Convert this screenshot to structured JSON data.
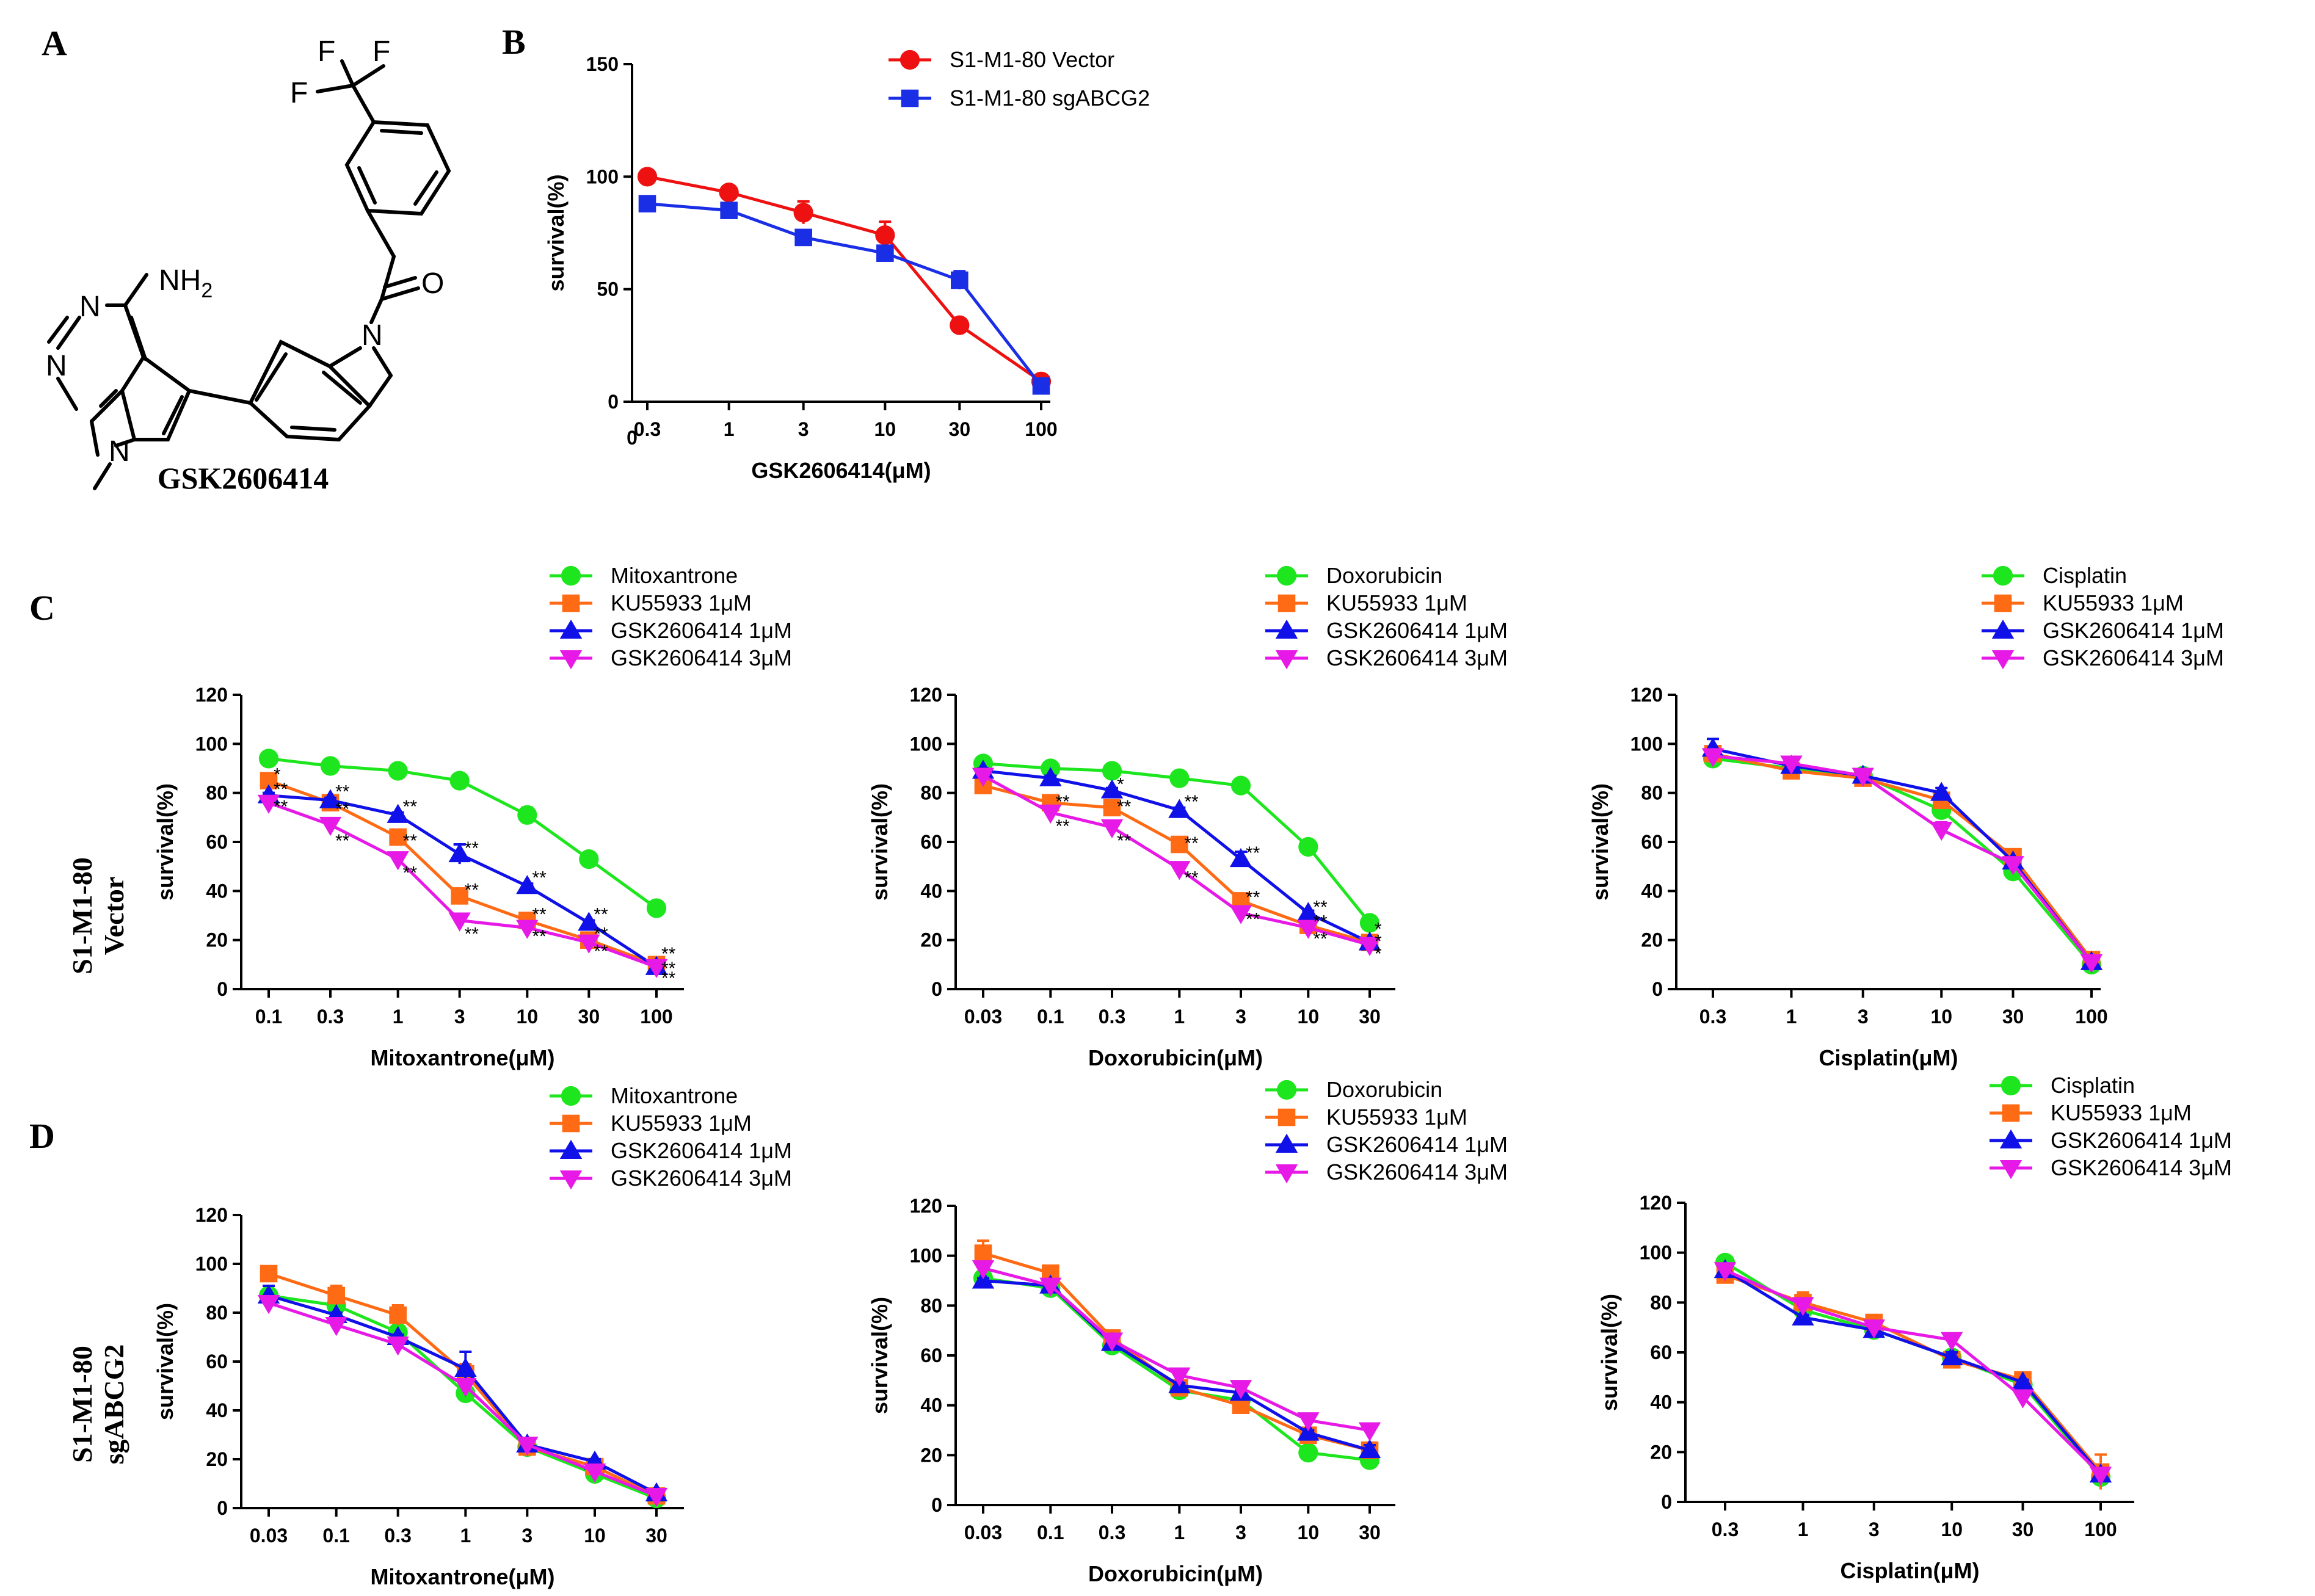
{
  "panels": {
    "A": "A",
    "B": "B",
    "C": "C",
    "D": "D"
  },
  "compound": {
    "name": "GSK2606414",
    "labels": {
      "f1": "F",
      "f2": "F",
      "f3": "F",
      "nh2": "NH",
      "nh2_sub": "2",
      "o": "O",
      "n_amide": "N",
      "n_pyr1": "N",
      "n_pyr2": "N",
      "n_pyrrole": "N"
    }
  },
  "row_labels": {
    "C": {
      "line1": "S1-M1-80",
      "line2": "Vector"
    },
    "D": {
      "line1": "S1-M1-80",
      "line2": "sgABCG2"
    }
  },
  "colors": {
    "green": "#1ee61e",
    "orange": "#ff6a14",
    "blue": "#1010e8",
    "magenta": "#e619e6",
    "red": "#ee1111",
    "blue_b": "#1a2ee6"
  },
  "chart_data": [
    {
      "id": "B",
      "type": "line",
      "x_scale": "log",
      "categories": [
        "0.3",
        "1",
        "3",
        "10",
        "30",
        "100"
      ],
      "x": [
        0.3,
        1,
        3,
        10,
        30,
        100
      ],
      "extra_x_tick": "0",
      "xlabel": "GSK2606414(μM)",
      "ylabel": "survival(%)",
      "ylim": [
        0,
        150
      ],
      "yticks": [
        "0",
        "50",
        "100",
        "150"
      ],
      "legend": "top-right",
      "series": [
        {
          "name": "S1-M1-80 Vector",
          "color": "#ee1111",
          "marker": "circle",
          "values": [
            100,
            93,
            84,
            74,
            34,
            9
          ],
          "err": [
            3,
            1,
            5,
            6,
            1,
            1
          ]
        },
        {
          "name": "S1-M1-80 sgABCG2",
          "color": "#1a2ee6",
          "marker": "square",
          "values": [
            88,
            85,
            73,
            66,
            54,
            7
          ],
          "err": [
            1,
            1,
            2,
            2,
            4,
            1
          ]
        }
      ]
    },
    {
      "id": "C1",
      "type": "line",
      "x_scale": "log",
      "categories": [
        "0.1",
        "0.3",
        "1",
        "3",
        "10",
        "30",
        "100"
      ],
      "x": [
        0.1,
        0.3,
        1,
        3,
        10,
        30,
        100
      ],
      "xlabel": "Mitoxantrone(μM)",
      "ylabel": "survival(%)",
      "ylim": [
        0,
        120
      ],
      "yticks": [
        "0",
        "20",
        "40",
        "60",
        "80",
        "100",
        "120"
      ],
      "legend": "top-right",
      "series": [
        {
          "name": "Mitoxantrone",
          "color": "#1ee61e",
          "marker": "circle",
          "values": [
            94,
            91,
            89,
            85,
            71,
            53,
            33
          ],
          "err": [
            1,
            2,
            1,
            2,
            3,
            1,
            1
          ]
        },
        {
          "name": "KU55933 1μM",
          "color": "#ff6a14",
          "marker": "square",
          "values": [
            85,
            76,
            62,
            38,
            28,
            20,
            10
          ],
          "err": [
            3,
            2,
            2,
            2,
            1,
            1,
            1
          ]
        },
        {
          "name": "GSK2606414 1μM",
          "color": "#1010e8",
          "marker": "triangle-up",
          "values": [
            79,
            77,
            71,
            55,
            42,
            27,
            9
          ],
          "err": [
            1,
            1,
            1,
            4,
            1,
            1,
            1
          ]
        },
        {
          "name": "GSK2606414 3μM",
          "color": "#e619e6",
          "marker": "triangle-down",
          "values": [
            76,
            67,
            53,
            28,
            25,
            19,
            9
          ],
          "err": [
            1,
            1,
            2,
            1,
            1,
            1,
            1
          ]
        }
      ],
      "annotations": [
        {
          "x": 0.1,
          "y": 85,
          "text": "*"
        },
        {
          "x": 0.1,
          "y": 79,
          "text": "**"
        },
        {
          "x": 0.1,
          "y": 72,
          "text": "**"
        },
        {
          "x": 0.3,
          "y": 78,
          "text": "**"
        },
        {
          "x": 0.3,
          "y": 71,
          "text": "**"
        },
        {
          "x": 0.3,
          "y": 58,
          "text": "**"
        },
        {
          "x": 1,
          "y": 72,
          "text": "**"
        },
        {
          "x": 1,
          "y": 58,
          "text": "**"
        },
        {
          "x": 1,
          "y": 45,
          "text": "**"
        },
        {
          "x": 3,
          "y": 55,
          "text": "**"
        },
        {
          "x": 3,
          "y": 38,
          "text": "**"
        },
        {
          "x": 3,
          "y": 20,
          "text": "**"
        },
        {
          "x": 10,
          "y": 43,
          "text": "**"
        },
        {
          "x": 10,
          "y": 28,
          "text": "**"
        },
        {
          "x": 10,
          "y": 19,
          "text": "**"
        },
        {
          "x": 30,
          "y": 28,
          "text": "**"
        },
        {
          "x": 30,
          "y": 20,
          "text": "**"
        },
        {
          "x": 30,
          "y": 13,
          "text": "**"
        },
        {
          "x": 100,
          "y": 12,
          "text": "**"
        },
        {
          "x": 100,
          "y": 6,
          "text": "**"
        },
        {
          "x": 100,
          "y": 2,
          "text": "**"
        }
      ]
    },
    {
      "id": "C2",
      "type": "line",
      "x_scale": "log",
      "categories": [
        "0.03",
        "0.1",
        "0.3",
        "1",
        "3",
        "10",
        "30"
      ],
      "x": [
        0.03,
        0.1,
        0.3,
        1,
        3,
        10,
        30
      ],
      "xlabel": "Doxorubicin(μM)",
      "ylabel": "survival(%)",
      "ylim": [
        0,
        120
      ],
      "yticks": [
        "0",
        "20",
        "40",
        "60",
        "80",
        "100",
        "120"
      ],
      "legend": "top-right",
      "series": [
        {
          "name": "Doxorubicin",
          "color": "#1ee61e",
          "marker": "circle",
          "values": [
            92,
            90,
            89,
            86,
            83,
            58,
            27
          ],
          "err": [
            1,
            1,
            1,
            1,
            1,
            1,
            1
          ]
        },
        {
          "name": "KU55933 1μM",
          "color": "#ff6a14",
          "marker": "square",
          "values": [
            83,
            76,
            74,
            59,
            36,
            26,
            19
          ],
          "err": [
            1,
            1,
            1,
            1,
            1,
            1,
            1
          ]
        },
        {
          "name": "GSK2606414 1μM",
          "color": "#1010e8",
          "marker": "triangle-up",
          "values": [
            89,
            86,
            81,
            73,
            53,
            31,
            19
          ],
          "err": [
            1,
            1,
            1,
            1,
            3,
            1,
            1
          ]
        },
        {
          "name": "GSK2606414 3μM",
          "color": "#e619e6",
          "marker": "triangle-down",
          "values": [
            87,
            72,
            66,
            49,
            31,
            25,
            18
          ],
          "err": [
            1,
            1,
            1,
            1,
            1,
            1,
            1
          ]
        }
      ],
      "annotations": [
        {
          "x": 0.1,
          "y": 74,
          "text": "**"
        },
        {
          "x": 0.1,
          "y": 64,
          "text": "**"
        },
        {
          "x": 0.3,
          "y": 81,
          "text": "*"
        },
        {
          "x": 0.3,
          "y": 72,
          "text": "**"
        },
        {
          "x": 0.3,
          "y": 58,
          "text": "**"
        },
        {
          "x": 1,
          "y": 74,
          "text": "**"
        },
        {
          "x": 1,
          "y": 57,
          "text": "**"
        },
        {
          "x": 1,
          "y": 43,
          "text": "**"
        },
        {
          "x": 3,
          "y": 53,
          "text": "**"
        },
        {
          "x": 3,
          "y": 35,
          "text": "**"
        },
        {
          "x": 3,
          "y": 26,
          "text": "**"
        },
        {
          "x": 10,
          "y": 31,
          "text": "**"
        },
        {
          "x": 10,
          "y": 25,
          "text": "**"
        },
        {
          "x": 10,
          "y": 18,
          "text": "**"
        },
        {
          "x": 30,
          "y": 22,
          "text": "*"
        },
        {
          "x": 30,
          "y": 17,
          "text": "*"
        },
        {
          "x": 30,
          "y": 12,
          "text": "*"
        }
      ]
    },
    {
      "id": "C3",
      "type": "line",
      "x_scale": "log",
      "categories": [
        "0.3",
        "1",
        "3",
        "10",
        "30",
        "100"
      ],
      "x": [
        0.3,
        1,
        3,
        10,
        30,
        100
      ],
      "xlabel": "Cisplatin(μM)",
      "ylabel": "survival(%)",
      "ylim": [
        0,
        120
      ],
      "yticks": [
        "0",
        "20",
        "40",
        "60",
        "80",
        "100",
        "120"
      ],
      "legend": "top-right",
      "series": [
        {
          "name": "Cisplatin",
          "color": "#1ee61e",
          "marker": "circle",
          "values": [
            94,
            90,
            87,
            73,
            48,
            10
          ],
          "err": [
            1,
            1,
            1,
            1,
            1,
            1
          ]
        },
        {
          "name": "KU55933 1μM",
          "color": "#ff6a14",
          "marker": "square",
          "values": [
            96,
            89,
            86,
            77,
            54,
            12
          ],
          "err": [
            1,
            1,
            1,
            1,
            1,
            1
          ]
        },
        {
          "name": "GSK2606414 1μM",
          "color": "#1010e8",
          "marker": "triangle-up",
          "values": [
            98,
            91,
            87,
            80,
            52,
            11
          ],
          "err": [
            4,
            1,
            1,
            2,
            1,
            1
          ]
        },
        {
          "name": "GSK2606414 3μM",
          "color": "#e619e6",
          "marker": "triangle-down",
          "values": [
            95,
            92,
            87,
            65,
            51,
            11
          ],
          "err": [
            1,
            1,
            1,
            3,
            1,
            1
          ]
        }
      ]
    },
    {
      "id": "D1",
      "type": "line",
      "x_scale": "log",
      "categories": [
        "0.03",
        "0.1",
        "0.3",
        "1",
        "3",
        "10",
        "30"
      ],
      "x": [
        0.03,
        0.1,
        0.3,
        1,
        3,
        10,
        30
      ],
      "xlabel": "Mitoxantrone(μM)",
      "ylabel": "survival(%)",
      "ylim": [
        0,
        120
      ],
      "yticks": [
        "0",
        "20",
        "40",
        "60",
        "80",
        "100",
        "120"
      ],
      "legend": "top-right",
      "series": [
        {
          "name": "Mitoxantrone",
          "color": "#1ee61e",
          "marker": "circle",
          "values": [
            87,
            83,
            72,
            47,
            25,
            14,
            4
          ],
          "err": [
            1,
            2,
            2,
            2,
            1,
            1,
            1
          ]
        },
        {
          "name": "KU55933 1μM",
          "color": "#ff6a14",
          "marker": "square",
          "values": [
            96,
            87,
            79,
            55,
            25,
            17,
            5
          ],
          "err": [
            1,
            4,
            4,
            4,
            1,
            1,
            1
          ]
        },
        {
          "name": "GSK2606414 1μM",
          "color": "#1010e8",
          "marker": "triangle-up",
          "values": [
            87,
            79,
            70,
            57,
            26,
            19,
            6
          ],
          "err": [
            4,
            1,
            1,
            7,
            1,
            1,
            1
          ]
        },
        {
          "name": "GSK2606414 3μM",
          "color": "#e619e6",
          "marker": "triangle-down",
          "values": [
            84,
            75,
            67,
            50,
            26,
            15,
            5
          ],
          "err": [
            1,
            1,
            1,
            2,
            1,
            1,
            1
          ]
        }
      ]
    },
    {
      "id": "D2",
      "type": "line",
      "x_scale": "log",
      "categories": [
        "0.03",
        "0.1",
        "0.3",
        "1",
        "3",
        "10",
        "30"
      ],
      "x": [
        0.03,
        0.1,
        0.3,
        1,
        3,
        10,
        30
      ],
      "xlabel": "Doxorubicin(μM)",
      "ylabel": "survival(%)",
      "ylim": [
        0,
        120
      ],
      "yticks": [
        "0",
        "20",
        "40",
        "60",
        "80",
        "100",
        "120"
      ],
      "legend": "top-right",
      "series": [
        {
          "name": "Doxorubicin",
          "color": "#1ee61e",
          "marker": "circle",
          "values": [
            91,
            87,
            64,
            46,
            42,
            21,
            18
          ],
          "err": [
            1,
            1,
            1,
            1,
            1,
            1,
            1
          ]
        },
        {
          "name": "KU55933 1μM",
          "color": "#ff6a14",
          "marker": "square",
          "values": [
            101,
            93,
            67,
            47,
            40,
            28,
            22
          ],
          "err": [
            5,
            2,
            2,
            2,
            2,
            2,
            3
          ]
        },
        {
          "name": "GSK2606414 1μM",
          "color": "#1010e8",
          "marker": "triangle-up",
          "values": [
            90,
            88,
            65,
            48,
            45,
            29,
            22
          ],
          "err": [
            1,
            1,
            1,
            1,
            1,
            1,
            2
          ]
        },
        {
          "name": "GSK2606414 3μM",
          "color": "#e619e6",
          "marker": "triangle-down",
          "values": [
            95,
            88,
            66,
            52,
            47,
            34,
            30
          ],
          "err": [
            1,
            1,
            1,
            1,
            1,
            1,
            1
          ]
        }
      ]
    },
    {
      "id": "D3",
      "type": "line",
      "x_scale": "log",
      "categories": [
        "0.3",
        "1",
        "3",
        "10",
        "30",
        "100"
      ],
      "x": [
        0.3,
        1,
        3,
        10,
        30,
        100
      ],
      "xlabel": "Cisplatin(μM)",
      "ylabel": "survival(%)",
      "ylim": [
        0,
        120
      ],
      "yticks": [
        "0",
        "20",
        "40",
        "60",
        "80",
        "100",
        "120"
      ],
      "legend": "top-right",
      "series": [
        {
          "name": "Cisplatin",
          "color": "#1ee61e",
          "marker": "circle",
          "values": [
            96,
            77,
            69,
            58,
            47,
            10
          ],
          "err": [
            1,
            2,
            1,
            1,
            1,
            1
          ]
        },
        {
          "name": "KU55933 1μM",
          "color": "#ff6a14",
          "marker": "square",
          "values": [
            91,
            80,
            72,
            57,
            49,
            12
          ],
          "err": [
            1,
            4,
            1,
            1,
            1,
            7
          ]
        },
        {
          "name": "GSK2606414 1μM",
          "color": "#1010e8",
          "marker": "triangle-up",
          "values": [
            93,
            74,
            69,
            58,
            48,
            11
          ],
          "err": [
            1,
            1,
            1,
            2,
            1,
            1
          ]
        },
        {
          "name": "GSK2606414 3μM",
          "color": "#e619e6",
          "marker": "triangle-down",
          "values": [
            93,
            79,
            70,
            65,
            42,
            11
          ],
          "err": [
            1,
            1,
            1,
            1,
            1,
            1
          ]
        }
      ]
    }
  ]
}
